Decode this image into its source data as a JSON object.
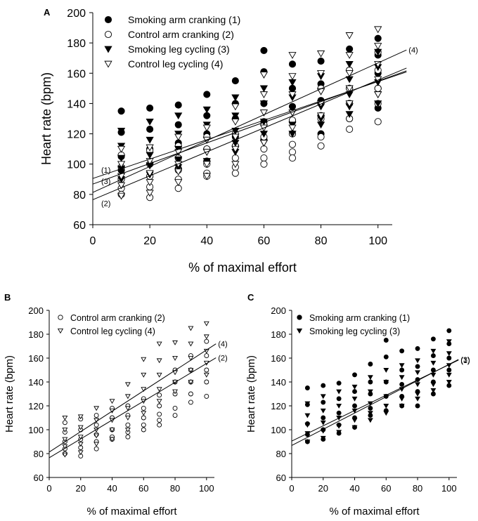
{
  "chart_data": [
    {
      "id": "A",
      "type": "scatter",
      "panel_label": "A",
      "xlabel": "% of maximal effort",
      "ylabel": "Heart rate (bpm)",
      "xlim": [
        0,
        105
      ],
      "ylim": [
        60,
        200
      ],
      "xticks": [
        0,
        20,
        40,
        60,
        80,
        100
      ],
      "yticks": [
        60,
        80,
        100,
        120,
        140,
        160,
        180,
        200
      ],
      "legend_position": "top-left",
      "series": [
        {
          "key": "1",
          "name": "Smoking arm cranking (1)",
          "marker": "filled-circle",
          "x": [
            10,
            10,
            10,
            10,
            10,
            20,
            20,
            20,
            20,
            20,
            30,
            30,
            30,
            30,
            30,
            40,
            40,
            40,
            40,
            40,
            50,
            50,
            50,
            50,
            50,
            60,
            60,
            60,
            60,
            60,
            70,
            70,
            70,
            70,
            70,
            80,
            80,
            80,
            80,
            80,
            90,
            90,
            90,
            90,
            90,
            100,
            100,
            100,
            100,
            100
          ],
          "y": [
            135,
            121,
            105,
            96,
            90,
            137,
            123,
            110,
            100,
            92,
            139,
            126,
            114,
            104,
            97,
            146,
            132,
            120,
            110,
            102,
            155,
            140,
            130,
            118,
            112,
            175,
            161,
            140,
            128,
            116,
            166,
            150,
            138,
            128,
            120,
            168,
            153,
            142,
            132,
            120,
            176,
            162,
            150,
            140,
            130,
            183,
            172,
            160,
            150,
            137
          ]
        },
        {
          "key": "2",
          "name": "Control arm cranking (2)",
          "marker": "open-circle",
          "x": [
            10,
            10,
            10,
            10,
            10,
            20,
            20,
            20,
            20,
            20,
            30,
            30,
            30,
            30,
            30,
            40,
            40,
            40,
            40,
            40,
            50,
            50,
            50,
            50,
            50,
            60,
            60,
            60,
            60,
            60,
            70,
            70,
            70,
            70,
            70,
            80,
            80,
            80,
            80,
            80,
            90,
            90,
            90,
            90,
            90,
            100,
            100,
            100,
            100,
            100
          ],
          "y": [
            106,
            98,
            90,
            84,
            80,
            109,
            100,
            92,
            85,
            78,
            112,
            104,
            96,
            90,
            84,
            118,
            110,
            100,
            94,
            92,
            120,
            112,
            104,
            98,
            94,
            126,
            118,
            110,
            104,
            100,
            129,
            120,
            113,
            108,
            104,
            150,
            140,
            130,
            118,
            112,
            162,
            150,
            140,
            130,
            123,
            174,
            162,
            150,
            140,
            128
          ]
        },
        {
          "key": "3",
          "name": "Smoking leg cycling (3)",
          "marker": "filled-triangle-down",
          "x": [
            10,
            10,
            10,
            10,
            10,
            20,
            20,
            20,
            20,
            20,
            30,
            30,
            30,
            30,
            30,
            40,
            40,
            40,
            40,
            40,
            50,
            50,
            50,
            50,
            50,
            60,
            60,
            60,
            60,
            60,
            70,
            70,
            70,
            70,
            70,
            80,
            80,
            80,
            80,
            80,
            90,
            90,
            90,
            90,
            90,
            100,
            100,
            100,
            100,
            100
          ],
          "y": [
            122,
            112,
            104,
            97,
            90,
            128,
            116,
            106,
            99,
            93,
            132,
            120,
            110,
            103,
            98,
            136,
            126,
            116,
            108,
            102,
            144,
            132,
            122,
            114,
            108,
            150,
            140,
            128,
            120,
            114,
            154,
            144,
            134,
            126,
            120,
            158,
            148,
            138,
            130,
            126,
            166,
            156,
            146,
            138,
            133,
            174,
            164,
            154,
            146,
            140
          ]
        },
        {
          "key": "4",
          "name": "Control leg cycling (4)",
          "marker": "open-triangle-down",
          "x": [
            10,
            10,
            10,
            10,
            10,
            20,
            20,
            20,
            20,
            20,
            30,
            30,
            30,
            30,
            30,
            40,
            40,
            40,
            40,
            40,
            50,
            50,
            50,
            50,
            50,
            60,
            60,
            60,
            60,
            60,
            70,
            70,
            70,
            70,
            70,
            80,
            80,
            80,
            80,
            80,
            90,
            90,
            90,
            90,
            90,
            100,
            100,
            100,
            100,
            100
          ],
          "y": [
            110,
            100,
            92,
            86,
            79,
            111,
            102,
            94,
            88,
            81,
            118,
            108,
            100,
            95,
            88,
            124,
            116,
            108,
            100,
            92,
            138,
            128,
            118,
            110,
            100,
            159,
            146,
            134,
            124,
            114,
            172,
            158,
            146,
            134,
            124,
            173,
            160,
            148,
            140,
            132,
            185,
            172,
            160,
            150,
            140,
            189,
            178,
            166,
            156,
            146
          ]
        }
      ],
      "regression_lines": [
        {
          "key": "1",
          "label": "(1)",
          "intercept": 90.5,
          "slope": 0.64
        },
        {
          "key": "2",
          "label": "(2)",
          "intercept": 76.5,
          "slope": 0.79
        },
        {
          "key": "3",
          "label": "(3)",
          "intercept": 86.8,
          "slope": 0.68
        },
        {
          "key": "4",
          "label": "(4)",
          "intercept": 81.3,
          "slope": 0.855
        }
      ]
    },
    {
      "id": "B",
      "type": "scatter",
      "panel_label": "B",
      "xlabel": "% of maximal effort",
      "ylabel": "Heart rate (bpm)",
      "xlim": [
        0,
        105
      ],
      "ylim": [
        60,
        200
      ],
      "xticks": [
        0,
        20,
        40,
        60,
        80,
        100
      ],
      "yticks": [
        60,
        80,
        100,
        120,
        140,
        160,
        180,
        200
      ],
      "legend_position": "top-left",
      "series": [
        {
          "key": "2",
          "name": "Control arm cranking (2)",
          "marker": "open-circle",
          "x": [
            10,
            10,
            10,
            10,
            10,
            20,
            20,
            20,
            20,
            20,
            30,
            30,
            30,
            30,
            30,
            40,
            40,
            40,
            40,
            40,
            50,
            50,
            50,
            50,
            50,
            60,
            60,
            60,
            60,
            60,
            70,
            70,
            70,
            70,
            70,
            80,
            80,
            80,
            80,
            80,
            90,
            90,
            90,
            90,
            90,
            100,
            100,
            100,
            100,
            100
          ],
          "y": [
            106,
            98,
            90,
            84,
            80,
            109,
            100,
            92,
            85,
            78,
            112,
            104,
            96,
            90,
            84,
            118,
            110,
            100,
            94,
            92,
            120,
            112,
            104,
            98,
            94,
            126,
            118,
            110,
            104,
            100,
            129,
            120,
            113,
            108,
            104,
            150,
            140,
            130,
            118,
            112,
            162,
            150,
            140,
            130,
            123,
            174,
            162,
            150,
            140,
            128
          ]
        },
        {
          "key": "4",
          "name": "Control leg cycling (4)",
          "marker": "open-triangle-down",
          "x": [
            10,
            10,
            10,
            10,
            10,
            20,
            20,
            20,
            20,
            20,
            30,
            30,
            30,
            30,
            30,
            40,
            40,
            40,
            40,
            40,
            50,
            50,
            50,
            50,
            50,
            60,
            60,
            60,
            60,
            60,
            70,
            70,
            70,
            70,
            70,
            80,
            80,
            80,
            80,
            80,
            90,
            90,
            90,
            90,
            90,
            100,
            100,
            100,
            100,
            100
          ],
          "y": [
            110,
            100,
            92,
            86,
            79,
            111,
            102,
            94,
            88,
            81,
            118,
            108,
            100,
            95,
            88,
            124,
            116,
            108,
            100,
            92,
            138,
            128,
            118,
            110,
            100,
            159,
            146,
            134,
            124,
            114,
            172,
            158,
            146,
            134,
            124,
            173,
            160,
            148,
            140,
            132,
            185,
            172,
            160,
            150,
            140,
            189,
            178,
            166,
            156,
            146
          ]
        }
      ],
      "regression_lines": [
        {
          "key": "4",
          "label": "(4)",
          "intercept": 81.3,
          "slope": 0.855
        },
        {
          "key": "2",
          "label": "(2)",
          "intercept": 76.5,
          "slope": 0.79
        }
      ]
    },
    {
      "id": "C",
      "type": "scatter",
      "panel_label": "C",
      "xlabel": "% of maximal effort",
      "ylabel": "Heart rate (bpm)",
      "xlim": [
        0,
        105
      ],
      "ylim": [
        60,
        200
      ],
      "xticks": [
        0,
        20,
        40,
        60,
        80,
        100
      ],
      "yticks": [
        60,
        80,
        100,
        120,
        140,
        160,
        180,
        200
      ],
      "legend_position": "top-left",
      "series": [
        {
          "key": "1",
          "name": "Smoking arm cranking (1)",
          "marker": "filled-circle",
          "x": [
            10,
            10,
            10,
            10,
            10,
            20,
            20,
            20,
            20,
            20,
            30,
            30,
            30,
            30,
            30,
            40,
            40,
            40,
            40,
            40,
            50,
            50,
            50,
            50,
            50,
            60,
            60,
            60,
            60,
            60,
            70,
            70,
            70,
            70,
            70,
            80,
            80,
            80,
            80,
            80,
            90,
            90,
            90,
            90,
            90,
            100,
            100,
            100,
            100,
            100
          ],
          "y": [
            135,
            121,
            105,
            96,
            90,
            137,
            123,
            110,
            100,
            92,
            139,
            126,
            114,
            104,
            97,
            146,
            132,
            120,
            110,
            102,
            155,
            140,
            130,
            118,
            112,
            175,
            161,
            140,
            128,
            116,
            166,
            150,
            138,
            128,
            120,
            168,
            153,
            142,
            132,
            120,
            176,
            162,
            150,
            140,
            130,
            183,
            172,
            160,
            150,
            137
          ]
        },
        {
          "key": "3",
          "name": "Smoking leg cycling (3)",
          "marker": "filled-triangle-down",
          "x": [
            10,
            10,
            10,
            10,
            10,
            20,
            20,
            20,
            20,
            20,
            30,
            30,
            30,
            30,
            30,
            40,
            40,
            40,
            40,
            40,
            50,
            50,
            50,
            50,
            50,
            60,
            60,
            60,
            60,
            60,
            70,
            70,
            70,
            70,
            70,
            80,
            80,
            80,
            80,
            80,
            90,
            90,
            90,
            90,
            90,
            100,
            100,
            100,
            100,
            100
          ],
          "y": [
            122,
            112,
            104,
            97,
            90,
            128,
            116,
            106,
            99,
            93,
            132,
            120,
            110,
            103,
            98,
            136,
            126,
            116,
            108,
            102,
            144,
            132,
            122,
            114,
            108,
            150,
            140,
            128,
            120,
            114,
            154,
            144,
            134,
            126,
            120,
            158,
            148,
            138,
            130,
            126,
            166,
            156,
            146,
            138,
            133,
            174,
            164,
            154,
            146,
            140
          ]
        }
      ],
      "regression_lines": [
        {
          "key": "3",
          "label": "(3)",
          "intercept": 86.8,
          "slope": 0.68
        },
        {
          "key": "1",
          "label": "(1)",
          "intercept": 90.5,
          "slope": 0.64
        }
      ]
    }
  ]
}
